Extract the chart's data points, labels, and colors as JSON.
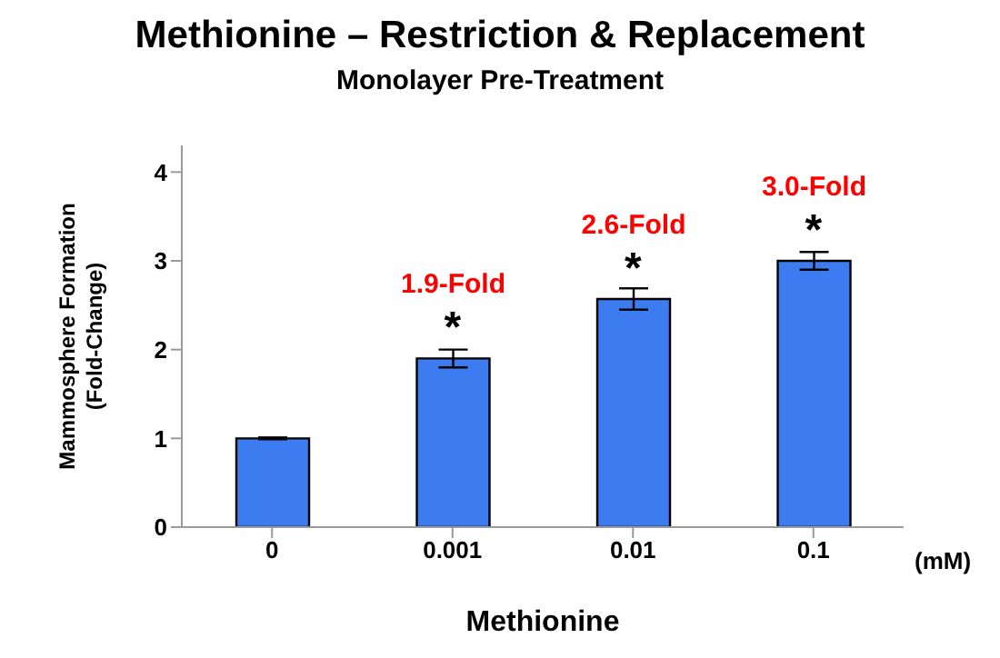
{
  "chart_data": {
    "type": "bar",
    "title": "Methionine – Restriction & Replacement",
    "subtitle": "Monolayer Pre-Treatment",
    "xlabel": "Methionine",
    "ylabel": "Mammosphere Formation\n(Fold-Change)",
    "categories": [
      "0",
      "0.001",
      "0.01",
      "0.1"
    ],
    "values": [
      1,
      1.9,
      2.57,
      3.0
    ],
    "errors": [
      0.01,
      0.1,
      0.12,
      0.1
    ],
    "value_labels": [
      null,
      "1.9-Fold",
      "2.6-Fold",
      "3.0-Fold"
    ],
    "color": "#3d7cf0",
    "ylim": [
      0,
      4.3
    ],
    "yticks": [
      0,
      1,
      2,
      3,
      4
    ],
    "grid": false,
    "legend": false,
    "annotations": [
      {
        "text": "*",
        "x": "0.001",
        "y": 1.9
      },
      {
        "text": "*",
        "x": "0.01",
        "y": 2.57
      },
      {
        "text": "*",
        "x": "0.1",
        "y": 3.0
      },
      "(mM)"
    ]
  }
}
